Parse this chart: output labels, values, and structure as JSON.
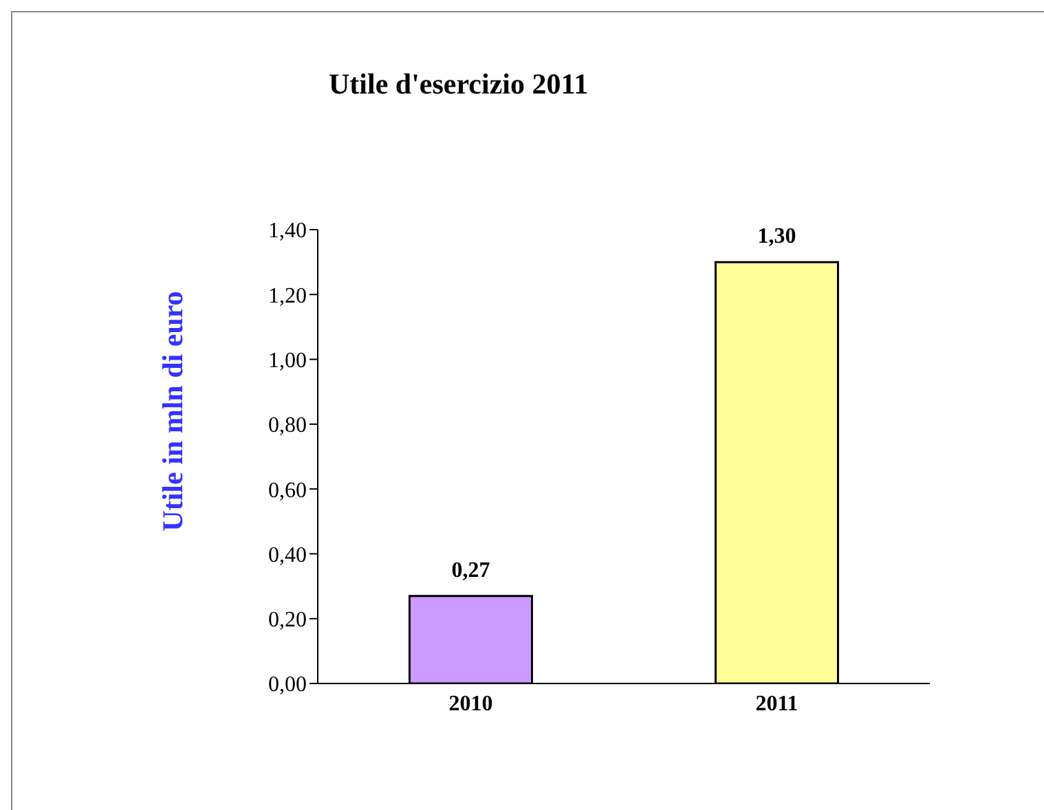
{
  "chart_data": {
    "type": "bar",
    "title": "Utile d'esercizio 2011",
    "ylabel": "Utile in mln di euro",
    "categories": [
      "2010",
      "2011"
    ],
    "values": [
      0.27,
      1.3
    ],
    "colors": [
      "#cc99ff",
      "#ffff99"
    ],
    "value_labels": [
      "0,27",
      "1,30"
    ],
    "ylim": [
      0,
      1.4
    ],
    "yticks": [
      {
        "value": 0,
        "label": "0,00"
      },
      {
        "value": 0.2,
        "label": "0,20"
      },
      {
        "value": 0.4,
        "label": "0,40"
      },
      {
        "value": 0.6,
        "label": "0,60"
      },
      {
        "value": 0.8,
        "label": "0,80"
      },
      {
        "value": 1,
        "label": "1,00"
      },
      {
        "value": 1.2,
        "label": "1,20"
      },
      {
        "value": 1.4,
        "label": "1,40"
      }
    ],
    "grid": false,
    "legend": false
  }
}
